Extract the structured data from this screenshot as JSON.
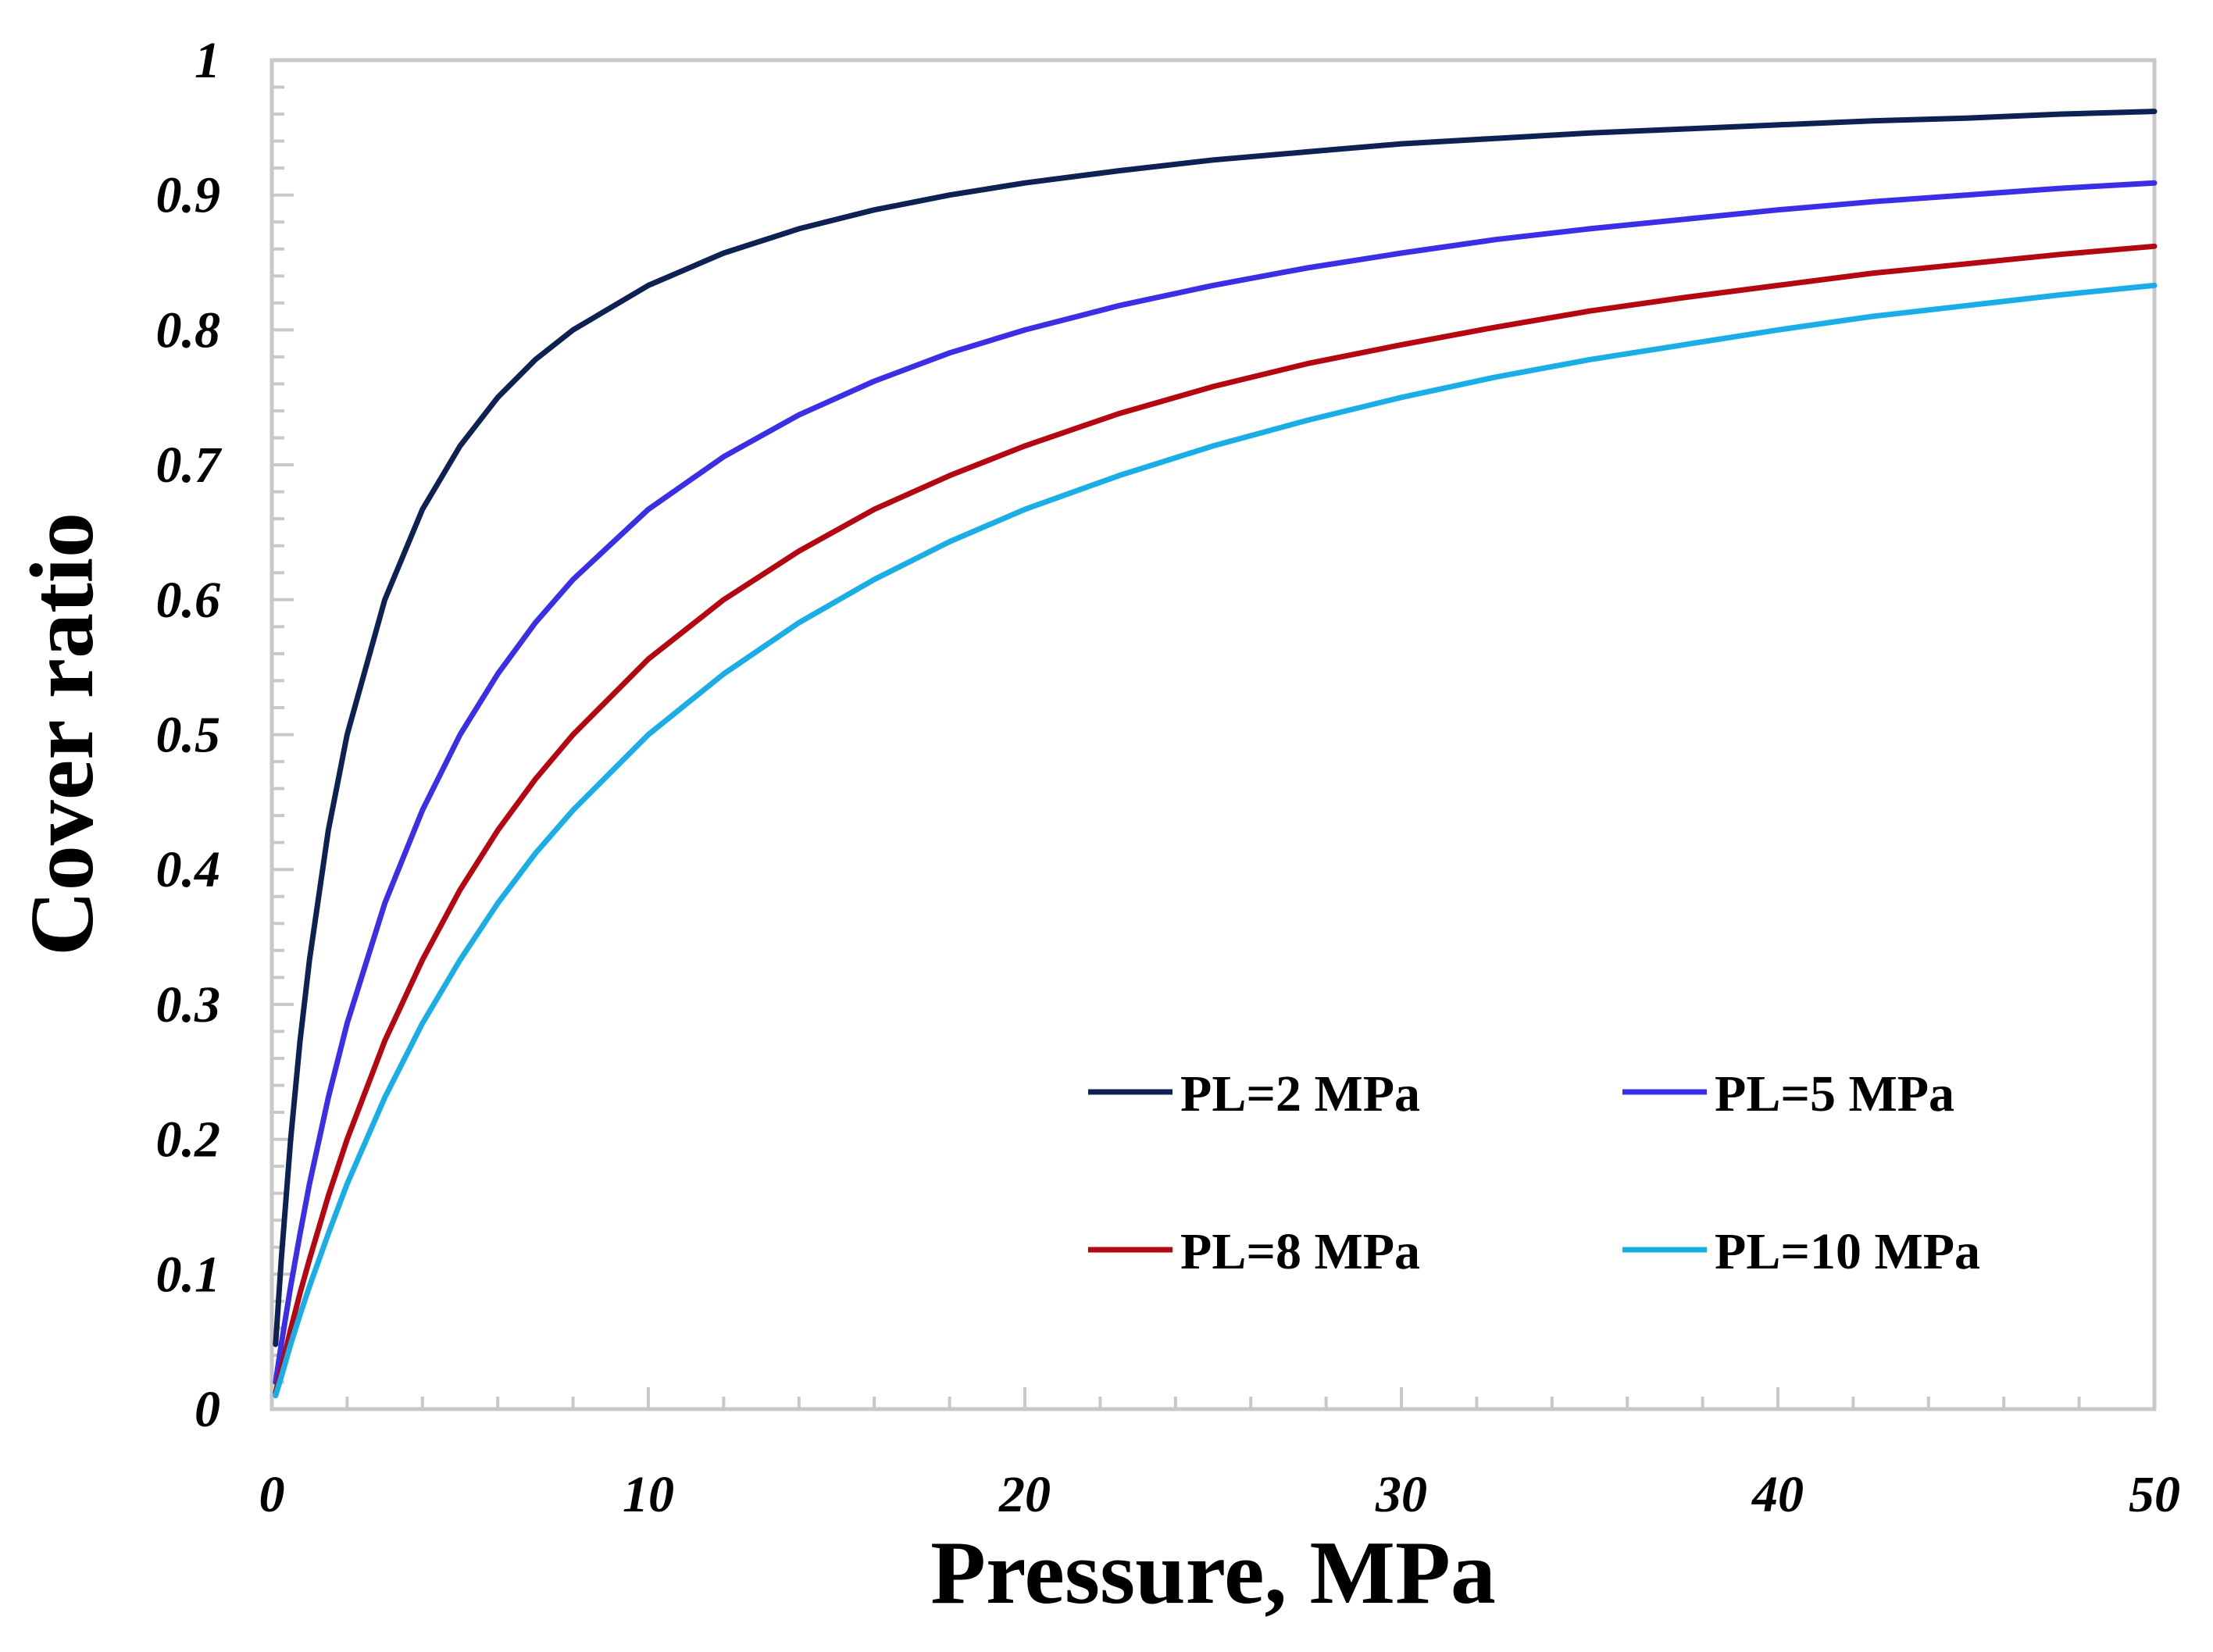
{
  "chart_data": {
    "type": "line",
    "title": "",
    "xlabel": "Pressure, MPa",
    "ylabel": "Cover ratio",
    "xlim": [
      0,
      50
    ],
    "ylim": [
      0,
      1
    ],
    "x_ticks": [
      0,
      10,
      20,
      30,
      40,
      50
    ],
    "y_ticks": [
      0,
      0.1,
      0.2,
      0.3,
      0.4,
      0.5,
      0.6,
      0.7,
      0.8,
      0.9,
      1
    ],
    "x_tick_labels": [
      "0",
      "10",
      "20",
      "30",
      "40",
      "50"
    ],
    "y_tick_labels": [
      "0",
      "0.1",
      "0.2",
      "0.3",
      "0.4",
      "0.5",
      "0.6",
      "0.7",
      "0.8",
      "0.9",
      "1"
    ],
    "grid": false,
    "legend_position": "bottom-right",
    "x": [
      0.1,
      0.25,
      0.5,
      0.75,
      1,
      1.5,
      2,
      3,
      4,
      5,
      6,
      7,
      8,
      10,
      12,
      14,
      16,
      18,
      20,
      22.5,
      25,
      27.5,
      30,
      32.5,
      35,
      37.5,
      40,
      42.5,
      45,
      47.5,
      50
    ],
    "series": [
      {
        "name": "PL=2 MPa",
        "color": "#0e2153",
        "values": [
          0.048,
          0.111,
          0.2,
          0.273,
          0.333,
          0.429,
          0.5,
          0.6,
          0.667,
          0.714,
          0.75,
          0.778,
          0.8,
          0.833,
          0.857,
          0.875,
          0.889,
          0.9,
          0.909,
          0.918,
          0.926,
          0.932,
          0.938,
          0.942,
          0.946,
          0.949,
          0.952,
          0.955,
          0.957,
          0.96,
          0.962
        ]
      },
      {
        "name": "PL=5 MPa",
        "color": "#3a2ee6",
        "values": [
          0.02,
          0.048,
          0.091,
          0.13,
          0.167,
          0.231,
          0.286,
          0.375,
          0.444,
          0.5,
          0.545,
          0.583,
          0.615,
          0.667,
          0.706,
          0.737,
          0.762,
          0.783,
          0.8,
          0.818,
          0.833,
          0.846,
          0.857,
          0.867,
          0.875,
          0.882,
          0.889,
          0.895,
          0.9,
          0.905,
          0.909
        ]
      },
      {
        "name": "PL=8 MPa",
        "color": "#b5070f",
        "values": [
          0.012,
          0.03,
          0.059,
          0.086,
          0.111,
          0.158,
          0.2,
          0.273,
          0.333,
          0.385,
          0.429,
          0.467,
          0.5,
          0.556,
          0.6,
          0.636,
          0.667,
          0.692,
          0.714,
          0.738,
          0.758,
          0.775,
          0.789,
          0.802,
          0.814,
          0.824,
          0.833,
          0.842,
          0.849,
          0.856,
          0.862
        ]
      },
      {
        "name": "PL=10 MPa",
        "color": "#1aaee6",
        "values": [
          0.01,
          0.024,
          0.048,
          0.07,
          0.091,
          0.13,
          0.167,
          0.231,
          0.286,
          0.333,
          0.375,
          0.412,
          0.444,
          0.5,
          0.545,
          0.583,
          0.615,
          0.643,
          0.667,
          0.692,
          0.714,
          0.733,
          0.75,
          0.765,
          0.778,
          0.789,
          0.8,
          0.81,
          0.818,
          0.826,
          0.833
        ]
      }
    ]
  }
}
